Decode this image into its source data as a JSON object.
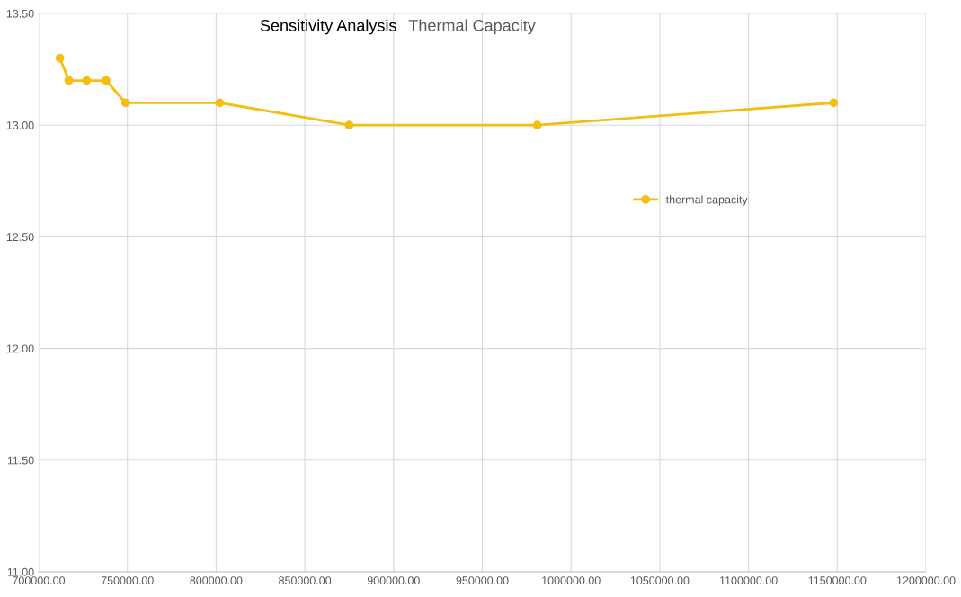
{
  "chart_data": {
    "type": "line",
    "title": "Sensitivity Analysis",
    "subtitle": "Thermal Capacity",
    "x": [
      712000,
      717000,
      727000,
      738000,
      749000,
      802000,
      875000,
      981000,
      1148000
    ],
    "series": [
      {
        "name": "thermal capacity",
        "color": "#f5bd0f",
        "values": [
          13.3,
          13.2,
          13.2,
          13.2,
          13.1,
          13.1,
          13.0,
          13.0,
          13.1
        ]
      }
    ],
    "xlim": [
      700000,
      1200000
    ],
    "xticks": [
      {
        "value": 700000,
        "label": "700000.00"
      },
      {
        "value": 750000,
        "label": "750000.00"
      },
      {
        "value": 800000,
        "label": "800000.00"
      },
      {
        "value": 850000,
        "label": "850000.00"
      },
      {
        "value": 900000,
        "label": "900000.00"
      },
      {
        "value": 950000,
        "label": "950000.00"
      },
      {
        "value": 1000000,
        "label": "1000000.00"
      },
      {
        "value": 1050000,
        "label": "1050000.00"
      },
      {
        "value": 1100000,
        "label": "1100000.00"
      },
      {
        "value": 1150000,
        "label": "1150000.00"
      },
      {
        "value": 1200000,
        "label": "1200000.00"
      }
    ],
    "ylim": [
      11.0,
      13.5
    ],
    "yticks": [
      {
        "value": 11.0,
        "label": "11.00"
      },
      {
        "value": 11.5,
        "label": "11.50"
      },
      {
        "value": 12.0,
        "label": "12.00"
      },
      {
        "value": 12.5,
        "label": "12.50"
      },
      {
        "value": 13.0,
        "label": "13.00"
      },
      {
        "value": 13.5,
        "label": "13.50"
      }
    ],
    "grid": true,
    "legend": "right",
    "marker": "circle",
    "line_style": "solid"
  }
}
